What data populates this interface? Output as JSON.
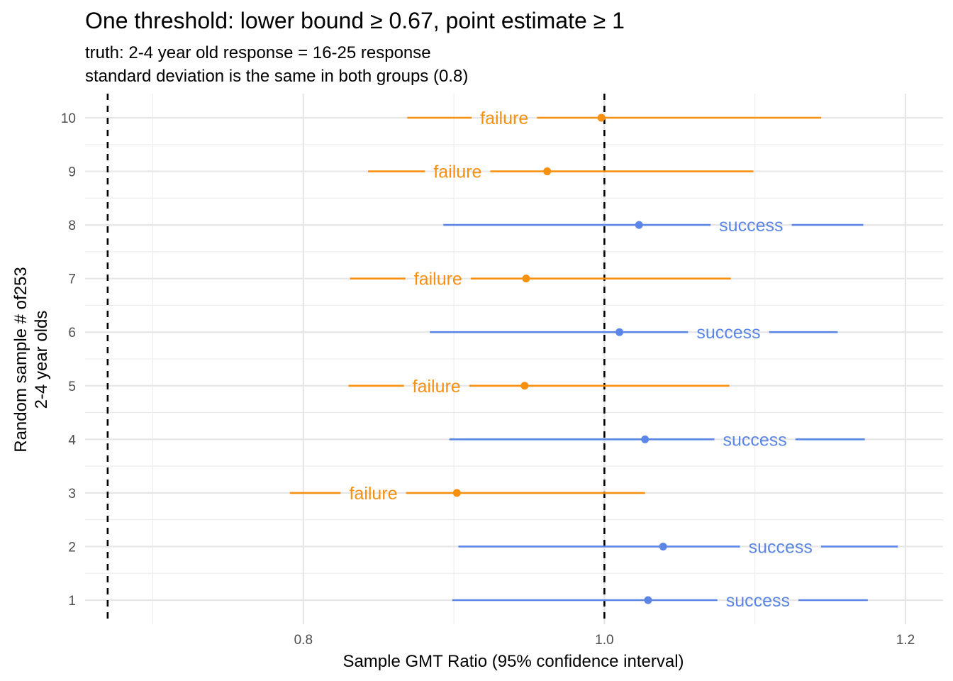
{
  "chart_data": {
    "type": "forest",
    "title": "One threshold: lower bound ≥ 0.67, point estimate ≥ 1",
    "subtitle": [
      "truth: 2-4 year old response = 16-25 response",
      "standard deviation is the same in both groups (0.8)"
    ],
    "xlabel": "Sample GMT Ratio (95% confidence interval)",
    "ylabel": [
      "Random sample # of253",
      "2-4 year olds"
    ],
    "xlim": [
      0.655,
      1.225
    ],
    "ylim": [
      0.55,
      10.45
    ],
    "x_ticks": [
      0.8,
      1.0,
      1.2
    ],
    "x_tick_labels": [
      "0.8",
      "1.0",
      "1.2"
    ],
    "y_ticks": [
      1,
      2,
      3,
      4,
      5,
      6,
      7,
      8,
      9,
      10
    ],
    "y_tick_labels": [
      "1",
      "2",
      "3",
      "4",
      "5",
      "6",
      "7",
      "8",
      "9",
      "10"
    ],
    "reference_lines": [
      0.67,
      1.0
    ],
    "grid": true,
    "colors": {
      "success": "#5B86E5",
      "failure": "#F7900F"
    },
    "status_labels": {
      "success": "success",
      "failure": "failure"
    },
    "points": [
      {
        "sample": 1,
        "estimate": 1.029,
        "lower": 0.899,
        "upper": 1.175,
        "status": "success"
      },
      {
        "sample": 2,
        "estimate": 1.039,
        "lower": 0.903,
        "upper": 1.195,
        "status": "success"
      },
      {
        "sample": 3,
        "estimate": 0.902,
        "lower": 0.791,
        "upper": 1.027,
        "status": "failure"
      },
      {
        "sample": 4,
        "estimate": 1.027,
        "lower": 0.897,
        "upper": 1.173,
        "status": "success"
      },
      {
        "sample": 5,
        "estimate": 0.947,
        "lower": 0.83,
        "upper": 1.083,
        "status": "failure"
      },
      {
        "sample": 6,
        "estimate": 1.01,
        "lower": 0.884,
        "upper": 1.155,
        "status": "success"
      },
      {
        "sample": 7,
        "estimate": 0.948,
        "lower": 0.831,
        "upper": 1.084,
        "status": "failure"
      },
      {
        "sample": 8,
        "estimate": 1.023,
        "lower": 0.893,
        "upper": 1.172,
        "status": "success"
      },
      {
        "sample": 9,
        "estimate": 0.962,
        "lower": 0.843,
        "upper": 1.099,
        "status": "failure"
      },
      {
        "sample": 10,
        "estimate": 0.998,
        "lower": 0.869,
        "upper": 1.144,
        "status": "failure"
      }
    ]
  }
}
